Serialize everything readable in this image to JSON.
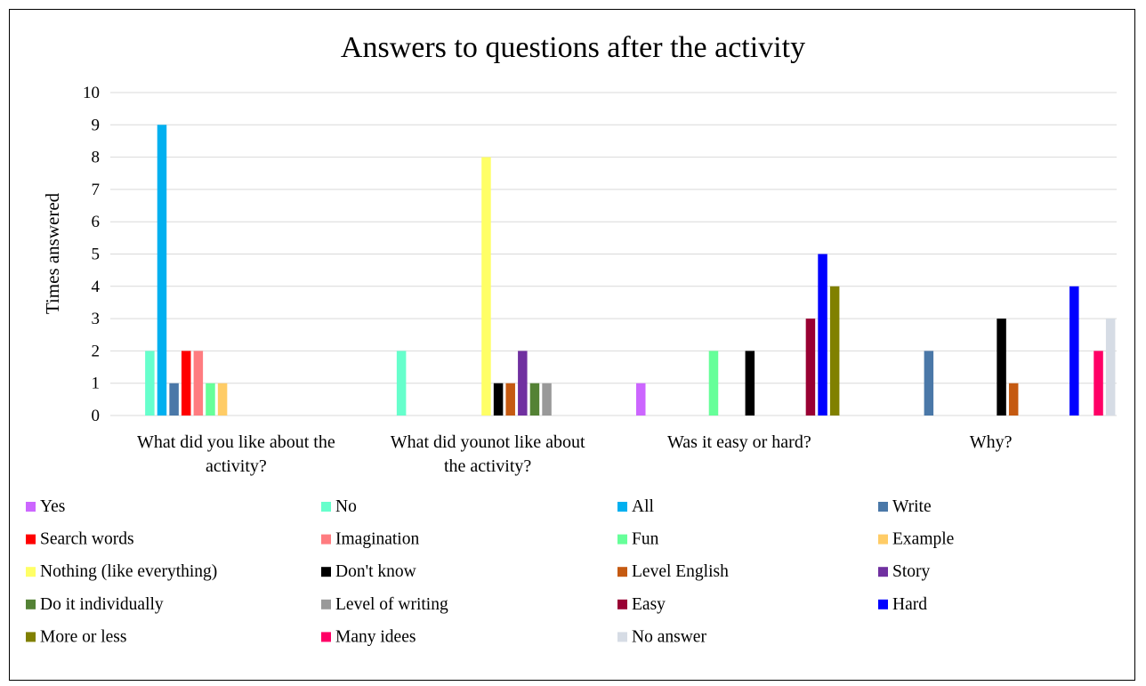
{
  "chart_data": {
    "type": "bar",
    "title": "Answers to questions after the activity",
    "ylabel": "Times answered",
    "xlabel": "",
    "ylim": [
      0,
      10
    ],
    "yticks": [
      0,
      1,
      2,
      3,
      4,
      5,
      6,
      7,
      8,
      9,
      10
    ],
    "grid": true,
    "legend_position": "bottom",
    "categories": [
      "What did you like about the activity?",
      "What did younot like about the activity?",
      "Was it easy or hard?",
      "Why?"
    ],
    "series": [
      {
        "name": "Yes",
        "color": "#CC66FF",
        "values": [
          null,
          null,
          1,
          null
        ]
      },
      {
        "name": "No",
        "color": "#66FFCC",
        "values": [
          2,
          2,
          null,
          null
        ]
      },
      {
        "name": "All",
        "color": "#00B0F0",
        "values": [
          9,
          null,
          null,
          null
        ]
      },
      {
        "name": "Write",
        "color": "#4A78A8",
        "values": [
          1,
          null,
          null,
          2
        ]
      },
      {
        "name": "Search words",
        "color": "#FF0000",
        "values": [
          2,
          null,
          null,
          null
        ]
      },
      {
        "name": "Imagination",
        "color": "#FF7C80",
        "values": [
          2,
          null,
          null,
          null
        ]
      },
      {
        "name": "Fun",
        "color": "#66FF99",
        "values": [
          1,
          null,
          2,
          null
        ]
      },
      {
        "name": "Example",
        "color": "#FFCC66",
        "values": [
          1,
          null,
          null,
          null
        ]
      },
      {
        "name": "Nothing (like everything)",
        "color": "#FFFF66",
        "values": [
          null,
          8,
          null,
          null
        ]
      },
      {
        "name": "Don't know",
        "color": "#000000",
        "values": [
          null,
          1,
          2,
          3
        ]
      },
      {
        "name": "Level English",
        "color": "#C55A11",
        "values": [
          null,
          1,
          null,
          1
        ]
      },
      {
        "name": "Story",
        "color": "#7030A0",
        "values": [
          null,
          2,
          null,
          null
        ]
      },
      {
        "name": "Do it individually",
        "color": "#548235",
        "values": [
          null,
          1,
          null,
          null
        ]
      },
      {
        "name": "Level of writing",
        "color": "#999999",
        "values": [
          null,
          1,
          null,
          null
        ]
      },
      {
        "name": "Easy",
        "color": "#990033",
        "values": [
          null,
          null,
          3,
          null
        ]
      },
      {
        "name": "Hard",
        "color": "#0000FF",
        "values": [
          null,
          null,
          5,
          4
        ]
      },
      {
        "name": "More or less",
        "color": "#808000",
        "values": [
          null,
          null,
          4,
          null
        ]
      },
      {
        "name": "Many idees",
        "color": "#FF0066",
        "values": [
          null,
          null,
          null,
          2
        ]
      },
      {
        "name": "No answer",
        "color": "#D6DCE5",
        "values": [
          null,
          null,
          null,
          3
        ]
      }
    ]
  }
}
